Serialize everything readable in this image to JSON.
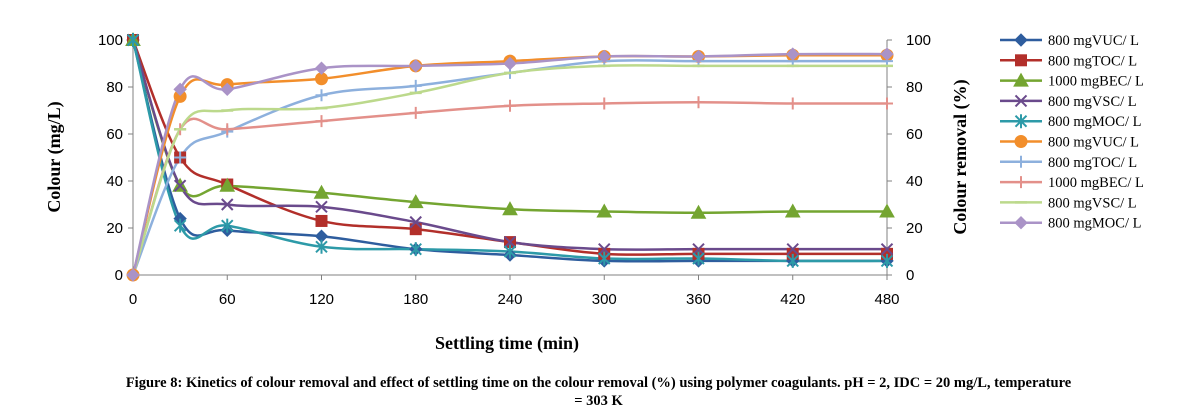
{
  "chart_data": {
    "type": "line",
    "x": [
      0,
      30,
      60,
      120,
      180,
      240,
      300,
      360,
      420,
      480
    ],
    "xticks": [
      "0",
      "60",
      "120",
      "180",
      "240",
      "300",
      "360",
      "420",
      "480"
    ],
    "xlabel": "Settling time (min)",
    "ylabel_left": "Colour (mg/L)",
    "ylabel_right": "Colour removal (%)",
    "ylim_left": [
      0,
      100
    ],
    "ylim_right": [
      0,
      100
    ],
    "yticks": [
      "0",
      "20",
      "40",
      "60",
      "80",
      "100"
    ],
    "grid": false,
    "legend_position": "right",
    "series": [
      {
        "name": "800 mgVUC/ L",
        "axis": "left",
        "color": "#2e5d9e",
        "marker": "diamond",
        "values": [
          100,
          24,
          19,
          16.5,
          11,
          8.5,
          6,
          6,
          6,
          6
        ]
      },
      {
        "name": "800 mgTOC/ L",
        "axis": "left",
        "color": "#b22f2a",
        "marker": "square",
        "values": [
          100,
          50,
          38.5,
          23,
          19.5,
          14,
          9,
          9,
          9,
          9
        ]
      },
      {
        "name": "1000 mgBEC/ L",
        "axis": "left",
        "color": "#74a531",
        "marker": "triangle",
        "values": [
          100,
          38,
          38,
          35,
          31,
          28,
          27,
          26.5,
          27,
          27
        ]
      },
      {
        "name": "800 mgVSC/ L",
        "axis": "left",
        "color": "#6a4a8c",
        "marker": "x",
        "values": [
          100,
          38,
          30,
          29,
          22.5,
          14,
          11,
          11,
          11,
          11
        ]
      },
      {
        "name": "800 mgMOC/ L",
        "axis": "left",
        "color": "#2d9aa8",
        "marker": "asterisk",
        "values": [
          100,
          21,
          21,
          12,
          11,
          10,
          7,
          7,
          6,
          6
        ]
      },
      {
        "name": "800 mgVUC/ L",
        "axis": "right",
        "color": "#f28e2b",
        "marker": "circle",
        "values": [
          0,
          76,
          81,
          83.5,
          89,
          91,
          93,
          93,
          93.5,
          93.5
        ]
      },
      {
        "name": "800 mgTOC/ L",
        "axis": "right",
        "color": "#8db0dd",
        "marker": "plus",
        "values": [
          0,
          50,
          61,
          76.5,
          80.5,
          86,
          91,
          91,
          91,
          91
        ]
      },
      {
        "name": "1000 mgBEC/ L",
        "axis": "right",
        "color": "#e3908a",
        "marker": "plus",
        "values": [
          0,
          62,
          62,
          65.5,
          69,
          72,
          73,
          73.5,
          73,
          73
        ]
      },
      {
        "name": "800 mgVSC/ L",
        "axis": "right",
        "color": "#bcd98c",
        "marker": "dash",
        "values": [
          0,
          62,
          70,
          71,
          77.5,
          86,
          89,
          89,
          89,
          89
        ]
      },
      {
        "name": "800 mgMOC/ L",
        "axis": "right",
        "color": "#aa93c7",
        "marker": "diamond",
        "values": [
          0,
          79,
          79,
          88,
          89,
          90,
          93,
          93,
          94,
          94
        ]
      }
    ]
  },
  "caption": {
    "line1": "Figure 8: Kinetics of colour removal and effect of settling time on the colour removal (%) using polymer coagulants. pH = 2, IDC = 20 mg/L, temperature",
    "line2": "= 303 K"
  }
}
